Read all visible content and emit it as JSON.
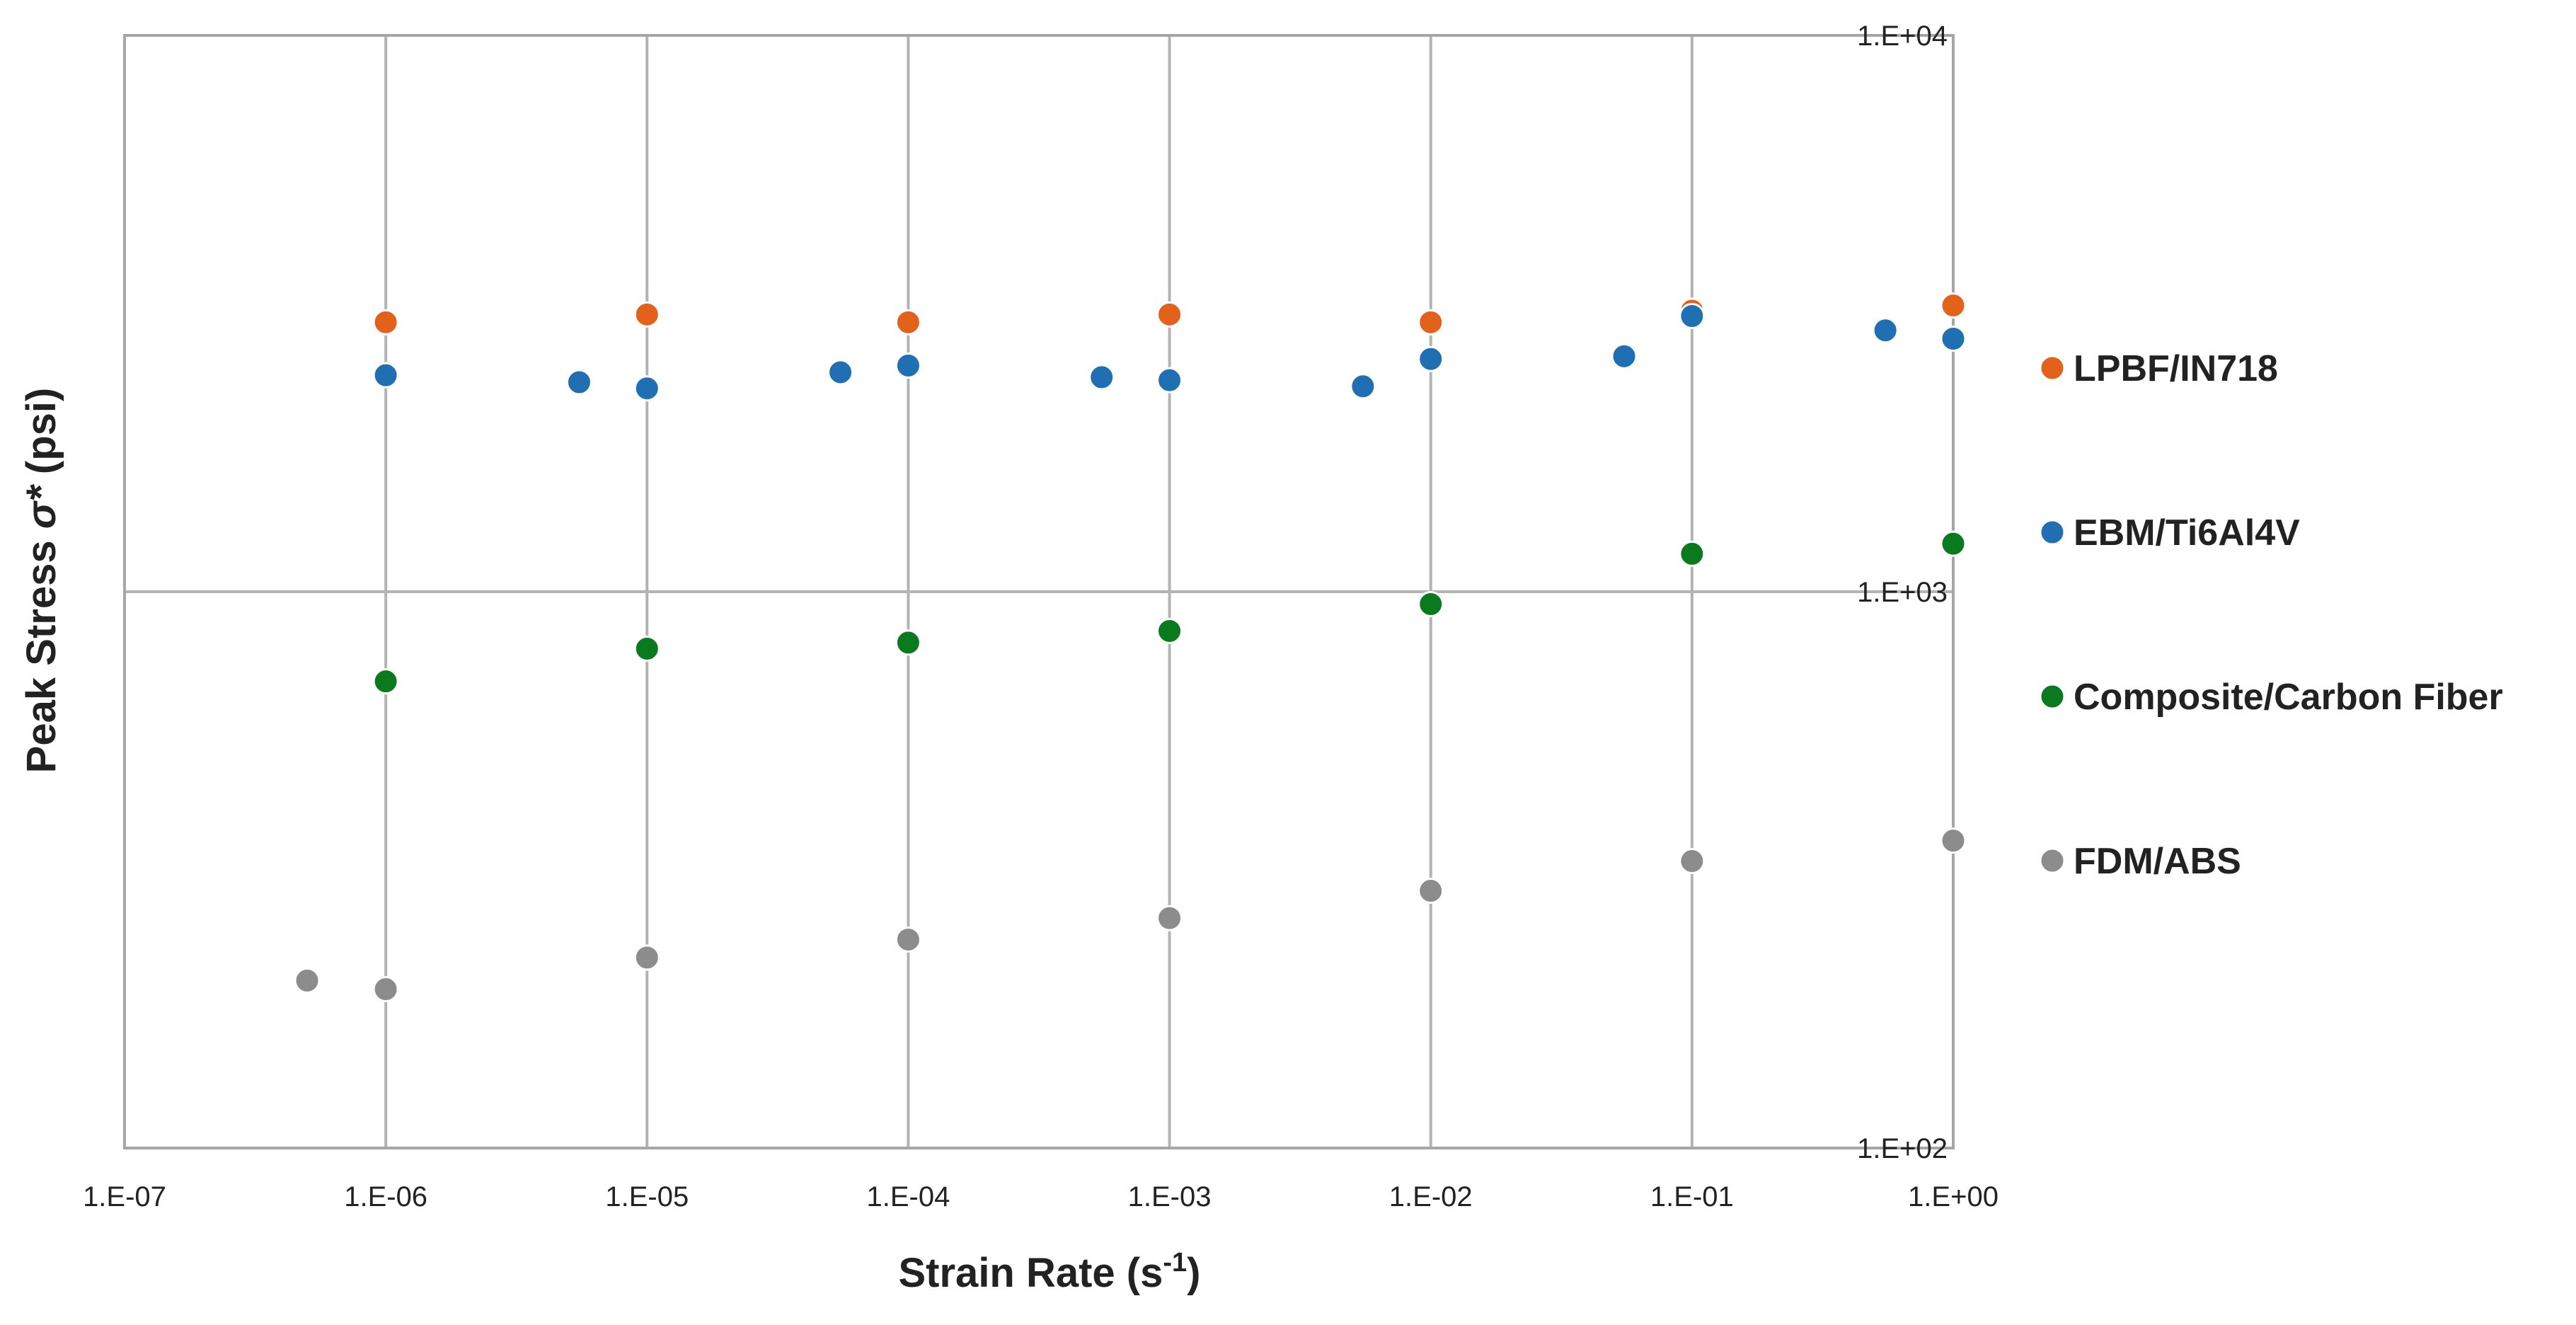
{
  "chart_data": {
    "type": "scatter",
    "title": "",
    "x_scale": "log",
    "y_scale": "log",
    "xlim": [
      1e-07,
      1
    ],
    "ylim": [
      100,
      10000
    ],
    "x_ticks": [
      1e-07,
      1e-06,
      1e-05,
      0.0001,
      0.001,
      0.01,
      0.1,
      1
    ],
    "x_tick_labels": [
      "1.E-07",
      "1.E-06",
      "1.E-05",
      "1.E-04",
      "1.E-03",
      "1.E-02",
      "1.E-01",
      "1.E+00"
    ],
    "y_ticks": [
      100,
      1000,
      10000
    ],
    "y_tick_labels": [
      "1.E+02",
      "1.E+03",
      "1.E+04"
    ],
    "xlabel": {
      "main": "Strain Rate (s",
      "sup": "-1",
      "close": ")"
    },
    "ylabel": {
      "main": "Peak Stress ",
      "sym": "σ*",
      "unit": " (psi)"
    },
    "grid": true,
    "legend_position": "right",
    "series": [
      {
        "name": "LPBF/IN718",
        "color": "#E2621B",
        "points": [
          [
            1e-06,
            3050
          ],
          [
            1e-05,
            3150
          ],
          [
            0.0001,
            3050
          ],
          [
            0.001,
            3150
          ],
          [
            0.01,
            3050
          ],
          [
            0.1,
            3200
          ],
          [
            1,
            3270
          ]
        ]
      },
      {
        "name": "EBM/Ti6Al4V",
        "color": "#1F6FB2",
        "points": [
          [
            1e-06,
            2450
          ],
          [
            5.5e-06,
            2380
          ],
          [
            1e-05,
            2320
          ],
          [
            5.5e-05,
            2480
          ],
          [
            0.0001,
            2550
          ],
          [
            0.00055,
            2430
          ],
          [
            0.001,
            2400
          ],
          [
            0.0055,
            2340
          ],
          [
            0.01,
            2620
          ],
          [
            0.055,
            2650
          ],
          [
            0.1,
            3130
          ],
          [
            0.55,
            2950
          ],
          [
            1,
            2850
          ]
        ]
      },
      {
        "name": "Composite/Carbon Fiber",
        "color": "#0A7A1E",
        "points": [
          [
            1e-06,
            690
          ],
          [
            1e-05,
            790
          ],
          [
            0.0001,
            810
          ],
          [
            0.001,
            850
          ],
          [
            0.01,
            950
          ],
          [
            0.1,
            1170
          ],
          [
            1,
            1220
          ]
        ]
      },
      {
        "name": "FDM/ABS",
        "color": "#8C8C8C",
        "points": [
          [
            5e-07,
            200
          ],
          [
            1e-06,
            193
          ],
          [
            1e-05,
            220
          ],
          [
            0.0001,
            237
          ],
          [
            0.001,
            259
          ],
          [
            0.01,
            290
          ],
          [
            0.1,
            328
          ],
          [
            1,
            357
          ]
        ]
      }
    ]
  }
}
